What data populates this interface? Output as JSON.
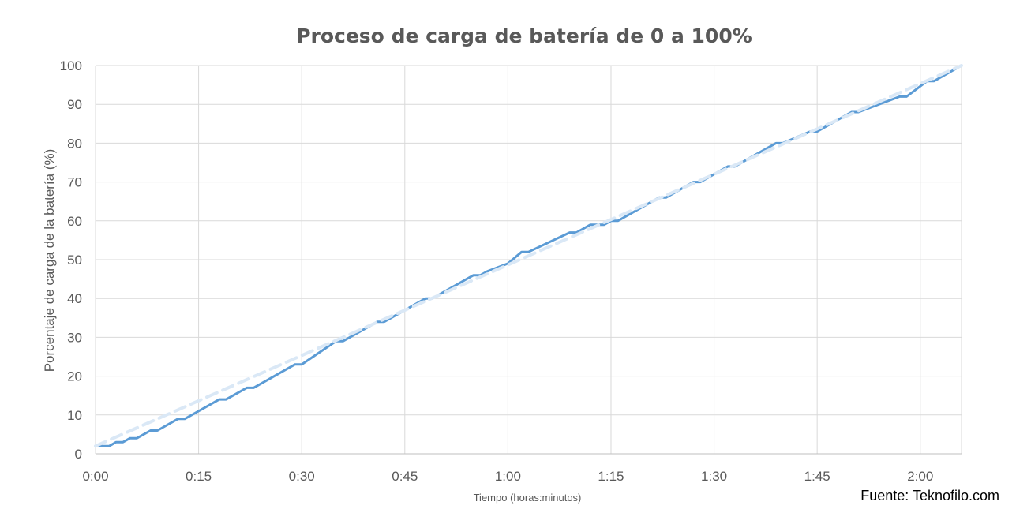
{
  "source": "Fuente: Teknofilo.com",
  "chart_data": {
    "type": "line",
    "title": "Proceso de carga de batería de 0 a 100%",
    "xlabel": "Tiempo (horas:minutos)",
    "ylabel": "Porcentaje de carga de la batería (%)",
    "xlim": [
      0,
      126
    ],
    "ylim": [
      0,
      100
    ],
    "x_tick_values": [
      0,
      15,
      30,
      45,
      60,
      75,
      90,
      105,
      120
    ],
    "x_tick_labels": [
      "0:00",
      "0:15",
      "0:30",
      "0:45",
      "1:00",
      "1:15",
      "1:30",
      "1:45",
      "2:00"
    ],
    "y_ticks": [
      0,
      10,
      20,
      30,
      40,
      50,
      60,
      70,
      80,
      90,
      100
    ],
    "grid": true,
    "legend": "none",
    "series": [
      {
        "style": "solid",
        "color": "#5b9bd5",
        "x": [
          0,
          2,
          3,
          4,
          5,
          6,
          7,
          8,
          9,
          12,
          13,
          18,
          19,
          22,
          23,
          29,
          30,
          35,
          36,
          41,
          42,
          48,
          49,
          54,
          55,
          56,
          57,
          60,
          62,
          63,
          69,
          70,
          72,
          73,
          74,
          75,
          76,
          82,
          83,
          87,
          88,
          92,
          93,
          99,
          100,
          104,
          105,
          110,
          111,
          117,
          118,
          121,
          122,
          126
        ],
        "y": [
          2,
          2,
          3,
          3,
          4,
          4,
          5,
          6,
          6,
          9,
          9,
          14,
          14,
          17,
          17,
          23,
          23,
          29,
          29,
          34,
          34,
          40,
          40,
          45,
          46,
          46,
          47,
          49,
          52,
          52,
          57,
          57,
          59,
          59,
          59,
          60,
          60,
          66,
          66,
          70,
          70,
          74,
          74,
          80,
          80,
          83,
          83,
          88,
          88,
          92,
          92,
          96,
          96,
          100
        ]
      },
      {
        "style": "dashed",
        "color": "#dae8f6",
        "x": [
          0,
          126
        ],
        "y": [
          2,
          100
        ]
      }
    ]
  }
}
